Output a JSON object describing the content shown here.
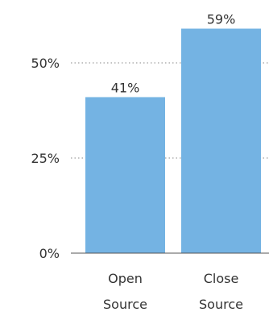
{
  "chart_data": {
    "type": "bar",
    "categories": [
      [
        "Open",
        "Source"
      ],
      [
        "Close",
        "Source"
      ]
    ],
    "values": [
      41,
      59
    ],
    "data_labels": [
      "41%",
      "59%"
    ],
    "ylim": [
      0,
      63
    ],
    "yticks": [
      0,
      25,
      50
    ],
    "ytick_labels": [
      "0%",
      "25%",
      "50%"
    ],
    "grid": "horizontal dotted",
    "bar_color": "#74b3e3",
    "title": "",
    "xlabel": "",
    "ylabel": ""
  }
}
